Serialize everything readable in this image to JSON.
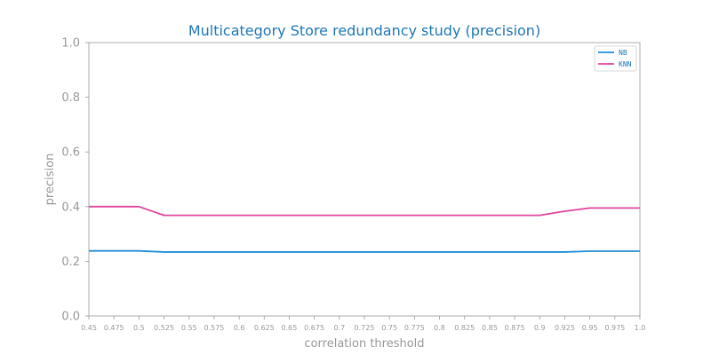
{
  "chart_data": {
    "type": "line",
    "title": "Multicategory Store redundancy study (precision)",
    "xlabel": "correlation threshold",
    "ylabel": "precision",
    "xlim": [
      0.45,
      1.0
    ],
    "ylim": [
      0.0,
      1.0
    ],
    "x": [
      0.45,
      0.475,
      0.5,
      0.525,
      0.55,
      0.575,
      0.6,
      0.625,
      0.65,
      0.675,
      0.7,
      0.725,
      0.75,
      0.775,
      0.8,
      0.825,
      0.85,
      0.875,
      0.9,
      0.925,
      0.95,
      0.975,
      1.0
    ],
    "x_tick_labels": [
      "0.45",
      "0.475",
      "0.5",
      "0.525",
      "0.55",
      "0.575",
      "0.6",
      "0.625",
      "0.65",
      "0.675",
      "0.7",
      "0.725",
      "0.75",
      "0.775",
      "0.8",
      "0.825",
      "0.85",
      "0.875",
      "0.9",
      "0.925",
      "0.95",
      "0.975",
      "1.0"
    ],
    "y_tick_labels": [
      "0.0",
      "0.2",
      "0.4",
      "0.6",
      "0.8",
      "1.0"
    ],
    "y_ticks": [
      0.0,
      0.2,
      0.4,
      0.6,
      0.8,
      1.0
    ],
    "series": [
      {
        "name": "NB",
        "color": "#1f8fd6",
        "values": [
          0.238,
          0.238,
          0.238,
          0.234,
          0.234,
          0.234,
          0.234,
          0.234,
          0.234,
          0.234,
          0.234,
          0.234,
          0.234,
          0.234,
          0.234,
          0.234,
          0.234,
          0.234,
          0.234,
          0.234,
          0.237,
          0.237,
          0.237
        ]
      },
      {
        "name": "KNN",
        "color": "#e0449c",
        "values": [
          0.4,
          0.4,
          0.4,
          0.368,
          0.368,
          0.368,
          0.368,
          0.368,
          0.368,
          0.368,
          0.368,
          0.368,
          0.368,
          0.368,
          0.368,
          0.368,
          0.368,
          0.368,
          0.368,
          0.383,
          0.395,
          0.395,
          0.395
        ]
      }
    ],
    "grid": false,
    "legend_position": "top-right",
    "colors": {
      "title": "#1f77b4",
      "axis_text": "#999999",
      "spine": "#999999"
    }
  }
}
